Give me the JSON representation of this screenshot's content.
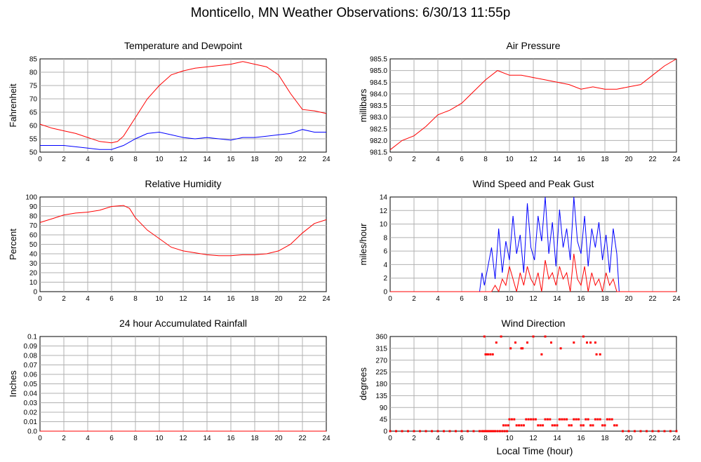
{
  "page": {
    "title": "Monticello, MN Weather Observations: 6/30/13 11:55p",
    "xlabel": "Local Time (hour)"
  },
  "chart_data": [
    {
      "id": "temp",
      "type": "line",
      "title": "Temperature and Dewpoint",
      "ylabel": "Fahrenheit",
      "xlim": [
        0,
        24
      ],
      "ylim": [
        50,
        85
      ],
      "xticks": [
        "0",
        "2",
        "4",
        "6",
        "8",
        "10",
        "12",
        "14",
        "16",
        "18",
        "20",
        "22",
        "24"
      ],
      "yticks": [
        "50",
        "55",
        "60",
        "65",
        "70",
        "75",
        "80",
        "85"
      ],
      "grid": true,
      "series": [
        {
          "color": "#ff0000",
          "x": [
            0,
            1,
            2,
            3,
            4,
            5,
            6,
            6.5,
            7,
            8,
            9,
            10,
            11,
            12,
            13,
            14,
            15,
            16,
            17,
            18,
            19,
            20,
            21,
            22,
            23,
            24
          ],
          "y": [
            60.5,
            59,
            58,
            57,
            55.5,
            54,
            53.5,
            54,
            56,
            63,
            70,
            75,
            79,
            80.5,
            81.5,
            82,
            82.5,
            83,
            84,
            83,
            82,
            79,
            72,
            66,
            65.5,
            64.5
          ]
        },
        {
          "color": "#0000ff",
          "x": [
            0,
            1,
            2,
            3,
            4,
            5,
            6,
            7,
            8,
            9,
            10,
            11,
            12,
            13,
            14,
            15,
            16,
            17,
            18,
            19,
            20,
            21,
            22,
            23,
            24
          ],
          "y": [
            52.5,
            52.5,
            52.5,
            52,
            51.5,
            51,
            51,
            52.5,
            55,
            57,
            57.5,
            56.5,
            55.5,
            55,
            55.5,
            55,
            54.5,
            55.5,
            55.5,
            56,
            56.5,
            57,
            58.5,
            57.5,
            57.5
          ]
        }
      ]
    },
    {
      "id": "pressure",
      "type": "line",
      "title": "Air Pressure",
      "ylabel": "millibars",
      "xlim": [
        0,
        24
      ],
      "ylim": [
        981.5,
        985.5
      ],
      "xticks": [
        "0",
        "2",
        "4",
        "6",
        "8",
        "10",
        "12",
        "14",
        "16",
        "18",
        "20",
        "22",
        "24"
      ],
      "yticks": [
        "981.5",
        "982.0",
        "982.5",
        "983.0",
        "983.5",
        "984.0",
        "984.5",
        "985.0",
        "985.5"
      ],
      "grid": true,
      "series": [
        {
          "color": "#ff0000",
          "x": [
            0,
            1,
            2,
            3,
            4,
            5,
            6,
            7,
            8,
            9,
            10,
            11,
            12,
            13,
            14,
            15,
            16,
            17,
            18,
            19,
            20,
            21,
            22,
            23,
            24
          ],
          "y": [
            981.6,
            982.0,
            982.2,
            982.6,
            983.1,
            983.3,
            983.6,
            984.1,
            984.6,
            985.0,
            984.8,
            984.8,
            984.7,
            984.6,
            984.5,
            984.4,
            984.2,
            984.3,
            984.2,
            984.2,
            984.3,
            984.4,
            984.8,
            985.2,
            985.5
          ]
        }
      ]
    },
    {
      "id": "humidity",
      "type": "line",
      "title": "Relative Humidity",
      "ylabel": "Percent",
      "xlim": [
        0,
        24
      ],
      "ylim": [
        0,
        100
      ],
      "xticks": [
        "0",
        "2",
        "4",
        "6",
        "8",
        "10",
        "12",
        "14",
        "16",
        "18",
        "20",
        "22",
        "24"
      ],
      "yticks": [
        "0",
        "10",
        "20",
        "30",
        "40",
        "50",
        "60",
        "70",
        "80",
        "90",
        "100"
      ],
      "grid": true,
      "series": [
        {
          "color": "#ff0000",
          "x": [
            0,
            1,
            2,
            3,
            4,
            5,
            6,
            7,
            7.5,
            8,
            9,
            10,
            11,
            12,
            13,
            14,
            15,
            16,
            17,
            18,
            19,
            20,
            21,
            22,
            23,
            24
          ],
          "y": [
            73,
            77,
            81,
            83,
            84,
            86,
            90,
            91,
            88,
            78,
            65,
            56,
            47,
            43,
            41,
            39,
            38,
            38,
            39,
            39,
            40,
            43,
            50,
            62,
            72,
            76
          ]
        }
      ]
    },
    {
      "id": "wind",
      "type": "line",
      "title": "Wind Speed and Peak Gust",
      "ylabel": "miles/hour",
      "xlim": [
        0,
        24
      ],
      "ylim": [
        0,
        15
      ],
      "xticks": [
        "0",
        "2",
        "4",
        "6",
        "8",
        "10",
        "12",
        "14",
        "16",
        "18",
        "20",
        "22",
        "24"
      ],
      "yticks": [
        "0",
        "2",
        "4",
        "6",
        "8",
        "10",
        "12",
        "14"
      ],
      "grid": true,
      "series": [
        {
          "color": "#0000ff",
          "x": [
            0,
            7.5,
            7.7,
            7.9,
            8.2,
            8.5,
            8.8,
            9.1,
            9.4,
            9.7,
            10,
            10.3,
            10.6,
            10.9,
            11.2,
            11.5,
            11.8,
            12.1,
            12.4,
            12.7,
            13,
            13.3,
            13.6,
            13.9,
            14.2,
            14.5,
            14.8,
            15.1,
            15.4,
            15.7,
            16,
            16.3,
            16.6,
            16.9,
            17.2,
            17.5,
            17.8,
            18.1,
            18.4,
            18.7,
            19,
            19.2,
            19.4,
            24
          ],
          "y": [
            0,
            0,
            3,
            1,
            4,
            7,
            2,
            10,
            3,
            8,
            5,
            12,
            6,
            9,
            3,
            14,
            7,
            5,
            12,
            8,
            15,
            6,
            11,
            4,
            13,
            7,
            10,
            5,
            15,
            8,
            6,
            12,
            4,
            10,
            7,
            11,
            5,
            9,
            3,
            10,
            6,
            0,
            0,
            0
          ]
        },
        {
          "color": "#ff0000",
          "x": [
            0,
            8.5,
            8.8,
            9.1,
            9.4,
            9.7,
            10,
            10.3,
            10.6,
            10.9,
            11.2,
            11.5,
            11.8,
            12.1,
            12.4,
            12.7,
            13,
            13.3,
            13.6,
            13.9,
            14.2,
            14.5,
            14.8,
            15.1,
            15.4,
            15.7,
            16,
            16.3,
            16.6,
            16.9,
            17.2,
            17.5,
            17.8,
            18.1,
            18.4,
            18.7,
            19,
            19.2,
            24
          ],
          "y": [
            0,
            0,
            1,
            0,
            2,
            1,
            4,
            2,
            0,
            3,
            1,
            4,
            2,
            1,
            3,
            0,
            5,
            2,
            3,
            1,
            4,
            2,
            3,
            0,
            6,
            2,
            1,
            4,
            0,
            3,
            1,
            2,
            0,
            3,
            1,
            2,
            0,
            0,
            0
          ]
        }
      ]
    },
    {
      "id": "rain",
      "type": "line",
      "title": "24 hour Accumulated Rainfall",
      "ylabel": "Inches",
      "xlim": [
        0,
        24
      ],
      "ylim": [
        0,
        0.1
      ],
      "xticks": [
        "0",
        "2",
        "4",
        "6",
        "8",
        "10",
        "12",
        "14",
        "16",
        "18",
        "20",
        "22",
        "24"
      ],
      "yticks": [
        "0.0",
        "0.01",
        "0.02",
        "0.03",
        "0.04",
        "0.05",
        "0.06",
        "0.07",
        "0.08",
        "0.09",
        "0.1"
      ],
      "grid": true,
      "series": [
        {
          "color": "#ff0000",
          "x": [
            0,
            24
          ],
          "y": [
            0,
            0
          ]
        }
      ]
    },
    {
      "id": "winddir",
      "type": "scatter",
      "title": "Wind Direction",
      "ylabel": "degrees",
      "xlim": [
        0,
        24
      ],
      "ylim": [
        0,
        360
      ],
      "xticks": [
        "0",
        "2",
        "4",
        "6",
        "8",
        "10",
        "12",
        "14",
        "16",
        "18",
        "20",
        "22",
        "24"
      ],
      "yticks": [
        "0",
        "45",
        "90",
        "135",
        "180",
        "225",
        "270",
        "315",
        "360"
      ],
      "grid": true,
      "series": [
        {
          "color": "#ff0000",
          "x": [
            0,
            0.5,
            1,
            1.5,
            2,
            2.5,
            3,
            3.5,
            4,
            4.5,
            5,
            5.5,
            6,
            6.5,
            7,
            7.5,
            7.7,
            7.8,
            7.9,
            8.0,
            8.1,
            8.2,
            8.3,
            8.4,
            8.5,
            8.6,
            8.7,
            8.8,
            9.0,
            9.2,
            9.4,
            9.6,
            9.8,
            9.5,
            9.7,
            9.9,
            10.0,
            10.2,
            10.4,
            10.6,
            10.8,
            11.0,
            11.2,
            11.4,
            11.6,
            11.8,
            12.0,
            12.2,
            12.4,
            12.6,
            12.8,
            13.0,
            13.2,
            13.4,
            13.6,
            13.8,
            14.0,
            14.2,
            14.4,
            14.6,
            14.8,
            15.0,
            15.2,
            15.4,
            15.6,
            15.8,
            16.0,
            16.2,
            16.4,
            16.6,
            16.8,
            17.0,
            17.2,
            17.4,
            17.6,
            17.8,
            18.0,
            18.2,
            18.4,
            18.6,
            18.8,
            19.0,
            19.5,
            20,
            20.5,
            21,
            21.5,
            22,
            22.5,
            23,
            23.5,
            24,
            10.1,
            10.5,
            11.0,
            11.5,
            12.0,
            13.0,
            13.5,
            14.3,
            15.4,
            16.2,
            16.8,
            17.3,
            17.6,
            8.0,
            8.2,
            8.6,
            8.9,
            9.3,
            11.1,
            12.7,
            16.5,
            17.2,
            7.9,
            8.1,
            8.4
          ],
          "y": [
            0,
            0,
            0,
            0,
            0,
            0,
            0,
            0,
            0,
            0,
            0,
            0,
            0,
            0,
            0,
            0,
            0,
            0,
            0,
            0,
            0,
            0,
            0,
            0,
            0,
            0,
            0,
            0,
            0,
            0,
            0,
            0,
            0,
            22,
            22,
            22,
            45,
            45,
            45,
            22,
            22,
            22,
            22,
            45,
            45,
            45,
            45,
            45,
            22,
            22,
            22,
            45,
            45,
            45,
            22,
            22,
            22,
            45,
            45,
            45,
            45,
            22,
            22,
            45,
            45,
            45,
            22,
            22,
            45,
            45,
            22,
            22,
            45,
            45,
            45,
            22,
            22,
            45,
            45,
            45,
            22,
            22,
            0,
            0,
            0,
            0,
            0,
            0,
            0,
            0,
            0,
            0,
            315,
            337,
            315,
            337,
            360,
            360,
            337,
            315,
            337,
            360,
            337,
            292,
            292,
            292,
            292,
            292,
            337,
            360,
            315,
            292,
            337,
            337,
            360,
            292,
            292
          ]
        }
      ]
    }
  ]
}
